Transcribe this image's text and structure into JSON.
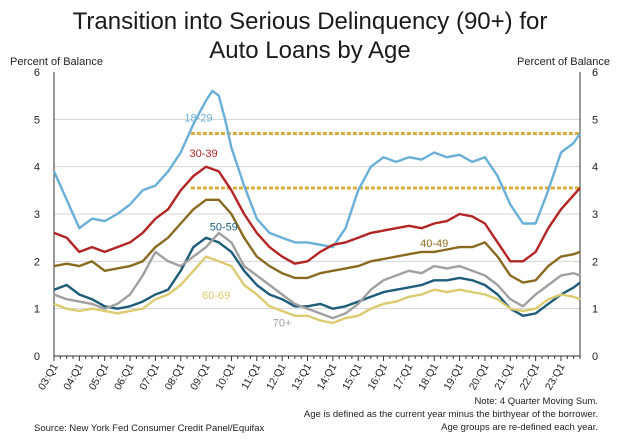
{
  "chart_data": {
    "type": "line",
    "title": "Transition into Serious Delinquency (90+) for",
    "title_line2": "Auto Loans by Age",
    "ylabel_left": "Percent of Balance",
    "ylabel_right": "Percent of Balance",
    "ylim": [
      0,
      6
    ],
    "yticks": [
      "0",
      "1",
      "2",
      "3",
      "4",
      "5",
      "6"
    ],
    "xlim": [
      2003.0,
      2023.75
    ],
    "xticks": [
      "03:Q1",
      "04:Q1",
      "05:Q1",
      "06:Q1",
      "07:Q1",
      "08:Q1",
      "09:Q1",
      "10:Q1",
      "11:Q1",
      "12:Q1",
      "13:Q1",
      "14:Q1",
      "15:Q1",
      "16:Q1",
      "17:Q1",
      "18:Q1",
      "19:Q1",
      "20:Q1",
      "21:Q1",
      "22:Q1",
      "23:Q1"
    ],
    "grid": "horizontal",
    "reference_lines": [
      4.7,
      3.55
    ],
    "colors": {
      "18-29": "#6aafd8",
      "30-39": "#b32424",
      "40-49": "#8a6a20",
      "50-59": "#1e5c7a",
      "60-69": "#dccb70",
      "70+": "#a0a0a0",
      "reference": "#d9ad3c"
    },
    "series": [
      {
        "name": "18-29",
        "x": [
          2003.0,
          2003.5,
          2004.0,
          2004.5,
          2005.0,
          2005.5,
          2006.0,
          2006.5,
          2007.0,
          2007.5,
          2008.0,
          2008.5,
          2009.0,
          2009.25,
          2009.5,
          2009.75,
          2010.0,
          2010.5,
          2011.0,
          2011.5,
          2012.0,
          2012.5,
          2013.0,
          2013.5,
          2014.0,
          2014.5,
          2015.0,
          2015.5,
          2016.0,
          2016.5,
          2017.0,
          2017.5,
          2018.0,
          2018.5,
          2019.0,
          2019.5,
          2020.0,
          2020.5,
          2021.0,
          2021.5,
          2022.0,
          2022.5,
          2023.0,
          2023.5,
          2023.75
        ],
        "y": [
          3.9,
          3.3,
          2.7,
          2.9,
          2.85,
          3.0,
          3.2,
          3.5,
          3.6,
          3.9,
          4.3,
          4.9,
          5.4,
          5.6,
          5.5,
          5.0,
          4.4,
          3.6,
          2.9,
          2.6,
          2.5,
          2.4,
          2.4,
          2.35,
          2.3,
          2.7,
          3.5,
          4.0,
          4.2,
          4.1,
          4.2,
          4.15,
          4.3,
          4.2,
          4.25,
          4.1,
          4.2,
          3.8,
          3.2,
          2.8,
          2.8,
          3.5,
          4.3,
          4.5,
          4.7
        ]
      },
      {
        "name": "30-39",
        "x": [
          2003.0,
          2003.5,
          2004.0,
          2004.5,
          2005.0,
          2005.5,
          2006.0,
          2006.5,
          2007.0,
          2007.5,
          2008.0,
          2008.5,
          2009.0,
          2009.5,
          2010.0,
          2010.5,
          2011.0,
          2011.5,
          2012.0,
          2012.5,
          2013.0,
          2013.5,
          2014.0,
          2014.5,
          2015.0,
          2015.5,
          2016.0,
          2016.5,
          2017.0,
          2017.5,
          2018.0,
          2018.5,
          2019.0,
          2019.5,
          2020.0,
          2020.5,
          2021.0,
          2021.5,
          2022.0,
          2022.5,
          2023.0,
          2023.5,
          2023.75
        ],
        "y": [
          2.6,
          2.5,
          2.2,
          2.3,
          2.2,
          2.3,
          2.4,
          2.6,
          2.9,
          3.1,
          3.5,
          3.8,
          4.0,
          3.9,
          3.5,
          3.0,
          2.6,
          2.3,
          2.1,
          1.95,
          2.0,
          2.2,
          2.35,
          2.4,
          2.5,
          2.6,
          2.65,
          2.7,
          2.75,
          2.7,
          2.8,
          2.85,
          3.0,
          2.95,
          2.8,
          2.4,
          2.0,
          2.0,
          2.2,
          2.7,
          3.1,
          3.4,
          3.55
        ]
      },
      {
        "name": "40-49",
        "x": [
          2003.0,
          2003.5,
          2004.0,
          2004.5,
          2005.0,
          2005.5,
          2006.0,
          2006.5,
          2007.0,
          2007.5,
          2008.0,
          2008.5,
          2009.0,
          2009.5,
          2010.0,
          2010.5,
          2011.0,
          2011.5,
          2012.0,
          2012.5,
          2013.0,
          2013.5,
          2014.0,
          2014.5,
          2015.0,
          2015.5,
          2016.0,
          2016.5,
          2017.0,
          2017.5,
          2018.0,
          2018.5,
          2019.0,
          2019.5,
          2020.0,
          2020.5,
          2021.0,
          2021.5,
          2022.0,
          2022.5,
          2023.0,
          2023.5,
          2023.75
        ],
        "y": [
          1.9,
          1.95,
          1.9,
          2.0,
          1.8,
          1.85,
          1.9,
          2.0,
          2.3,
          2.5,
          2.8,
          3.1,
          3.3,
          3.3,
          3.0,
          2.5,
          2.1,
          1.9,
          1.75,
          1.65,
          1.65,
          1.75,
          1.8,
          1.85,
          1.9,
          2.0,
          2.05,
          2.1,
          2.15,
          2.2,
          2.2,
          2.25,
          2.3,
          2.3,
          2.4,
          2.1,
          1.7,
          1.55,
          1.6,
          1.9,
          2.1,
          2.15,
          2.2
        ]
      },
      {
        "name": "50-59",
        "x": [
          2003.0,
          2003.5,
          2004.0,
          2004.5,
          2005.0,
          2005.5,
          2006.0,
          2006.5,
          2007.0,
          2007.5,
          2008.0,
          2008.5,
          2009.0,
          2009.5,
          2010.0,
          2010.5,
          2011.0,
          2011.5,
          2012.0,
          2012.5,
          2013.0,
          2013.5,
          2014.0,
          2014.5,
          2015.0,
          2015.5,
          2016.0,
          2016.5,
          2017.0,
          2017.5,
          2018.0,
          2018.5,
          2019.0,
          2019.5,
          2020.0,
          2020.5,
          2021.0,
          2021.5,
          2022.0,
          2022.5,
          2023.0,
          2023.5,
          2023.75
        ],
        "y": [
          1.4,
          1.5,
          1.3,
          1.2,
          1.05,
          1.0,
          1.05,
          1.15,
          1.3,
          1.4,
          1.8,
          2.3,
          2.5,
          2.4,
          2.2,
          1.8,
          1.5,
          1.3,
          1.2,
          1.05,
          1.05,
          1.1,
          1.0,
          1.05,
          1.15,
          1.25,
          1.35,
          1.4,
          1.45,
          1.5,
          1.6,
          1.6,
          1.65,
          1.6,
          1.5,
          1.3,
          1.0,
          0.85,
          0.9,
          1.1,
          1.3,
          1.45,
          1.55
        ]
      },
      {
        "name": "60-69",
        "x": [
          2003.0,
          2003.5,
          2004.0,
          2004.5,
          2005.0,
          2005.5,
          2006.0,
          2006.5,
          2007.0,
          2007.5,
          2008.0,
          2008.5,
          2009.0,
          2009.5,
          2010.0,
          2010.5,
          2011.0,
          2011.5,
          2012.0,
          2012.5,
          2013.0,
          2013.5,
          2014.0,
          2014.5,
          2015.0,
          2015.5,
          2016.0,
          2016.5,
          2017.0,
          2017.5,
          2018.0,
          2018.5,
          2019.0,
          2019.5,
          2020.0,
          2020.5,
          2021.0,
          2021.5,
          2022.0,
          2022.5,
          2023.0,
          2023.5,
          2023.75
        ],
        "y": [
          1.1,
          1.0,
          0.95,
          1.0,
          0.95,
          0.9,
          0.95,
          1.0,
          1.2,
          1.3,
          1.5,
          1.8,
          2.1,
          2.0,
          1.9,
          1.5,
          1.3,
          1.05,
          0.95,
          0.85,
          0.85,
          0.75,
          0.7,
          0.8,
          0.85,
          1.0,
          1.1,
          1.15,
          1.25,
          1.3,
          1.4,
          1.35,
          1.4,
          1.35,
          1.3,
          1.2,
          1.0,
          0.95,
          1.0,
          1.2,
          1.3,
          1.25,
          1.2
        ]
      },
      {
        "name": "70+",
        "x": [
          2003.0,
          2003.5,
          2004.0,
          2004.5,
          2005.0,
          2005.5,
          2006.0,
          2006.5,
          2007.0,
          2007.5,
          2008.0,
          2008.5,
          2009.0,
          2009.5,
          2010.0,
          2010.5,
          2011.0,
          2011.5,
          2012.0,
          2012.5,
          2013.0,
          2013.5,
          2014.0,
          2014.5,
          2015.0,
          2015.5,
          2016.0,
          2016.5,
          2017.0,
          2017.5,
          2018.0,
          2018.5,
          2019.0,
          2019.5,
          2020.0,
          2020.5,
          2021.0,
          2021.5,
          2022.0,
          2022.5,
          2023.0,
          2023.5,
          2023.75
        ],
        "y": [
          1.3,
          1.2,
          1.15,
          1.1,
          1.0,
          1.1,
          1.3,
          1.7,
          2.2,
          2.0,
          1.9,
          2.1,
          2.3,
          2.6,
          2.4,
          1.9,
          1.7,
          1.5,
          1.3,
          1.1,
          1.0,
          0.9,
          0.8,
          0.9,
          1.1,
          1.4,
          1.6,
          1.7,
          1.8,
          1.75,
          1.9,
          1.85,
          1.9,
          1.8,
          1.7,
          1.5,
          1.2,
          1.05,
          1.3,
          1.5,
          1.7,
          1.75,
          1.7
        ]
      }
    ],
    "labels": [
      {
        "series": "18-29",
        "text": "18-29",
        "x": 2008.7,
        "y": 4.95
      },
      {
        "series": "30-39",
        "text": "30-39",
        "x": 2008.9,
        "y": 4.2
      },
      {
        "series": "40-49",
        "text": "40-49",
        "x": 2018.0,
        "y": 2.3
      },
      {
        "series": "50-59",
        "text": "50-59",
        "x": 2009.7,
        "y": 2.65
      },
      {
        "series": "60-69",
        "text": "60-69",
        "x": 2009.4,
        "y": 1.2
      },
      {
        "series": "70+",
        "text": "70+",
        "x": 2012.0,
        "y": 0.62
      }
    ]
  },
  "footer": {
    "source": "Source: New York Fed Consumer Credit Panel/Equifax",
    "note1": "Note: 4 Quarter Moving Sum.",
    "note2": "Age is defined as the current year minus the birthyear of the borrower.",
    "note3": "Age groups are re-defined each year."
  }
}
